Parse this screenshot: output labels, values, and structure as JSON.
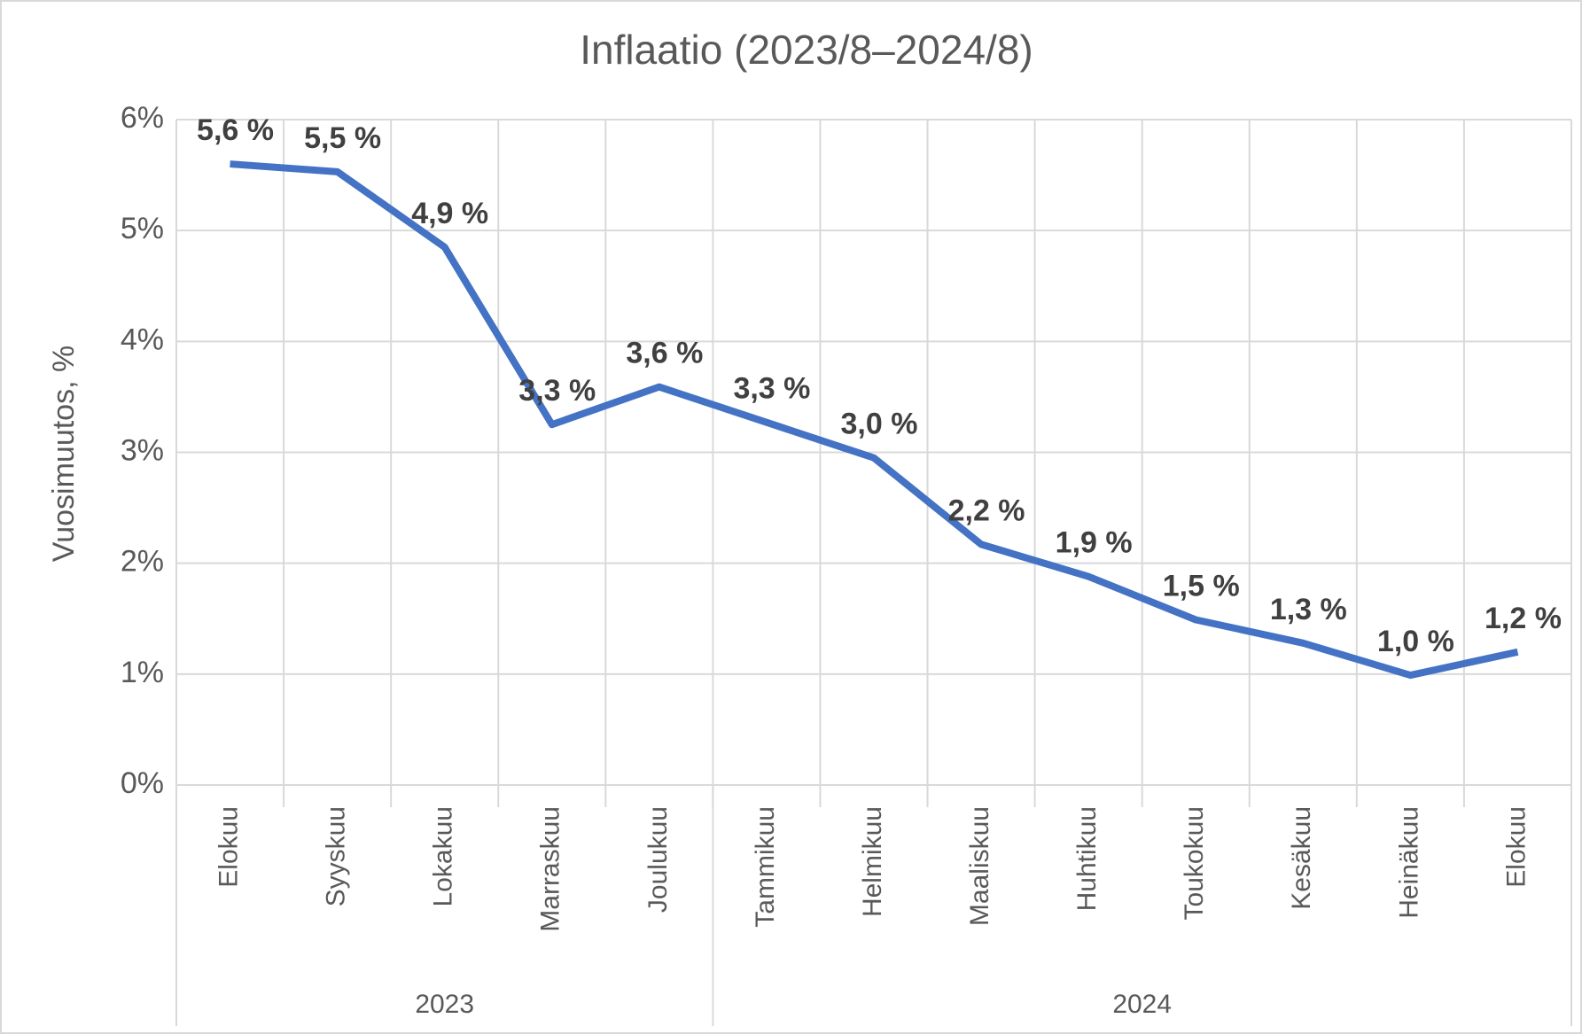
{
  "chart_data": {
    "type": "line",
    "title": "Inflaatio (2023/8–2024/8)",
    "y_label": "Vuosimuutos, %",
    "categories": [
      "Elokuu",
      "Syyskuu",
      "Lokakuu",
      "Marraskuu",
      "Joulukuu",
      "Tammikuu",
      "Helmikuu",
      "Maaliskuu",
      "Huhtikuu",
      "Toukokuu",
      "Kesäkuu",
      "Heinäkuu",
      "Elokuu"
    ],
    "groups": [
      {
        "label": "2023",
        "size": 5
      },
      {
        "label": "2024",
        "size": 8
      }
    ],
    "series": [
      {
        "name": "Inflaatio",
        "color": "#4472c4",
        "values": [
          5.6,
          5.53,
          4.85,
          3.25,
          3.59,
          3.27,
          2.95,
          2.17,
          1.88,
          1.49,
          1.28,
          0.99,
          1.2
        ],
        "value_labels": [
          "5,6 %",
          "5,5 %",
          "4,9 %",
          "3,3 %",
          "3,6 %",
          "3,3 %",
          "3,0 %",
          "2,2 %",
          "1,9 %",
          "1,5 %",
          "1,3 %",
          "1,0 %",
          "1,2 %"
        ]
      }
    ],
    "ylim": [
      0,
      6
    ],
    "yticks": [
      {
        "value": 0,
        "label": "0%"
      },
      {
        "value": 1,
        "label": "1%"
      },
      {
        "value": 2,
        "label": "2%"
      },
      {
        "value": 3,
        "label": "3%"
      },
      {
        "value": 4,
        "label": "4%"
      },
      {
        "value": 5,
        "label": "5%"
      },
      {
        "value": 6,
        "label": "6%"
      }
    ],
    "grid": true
  }
}
